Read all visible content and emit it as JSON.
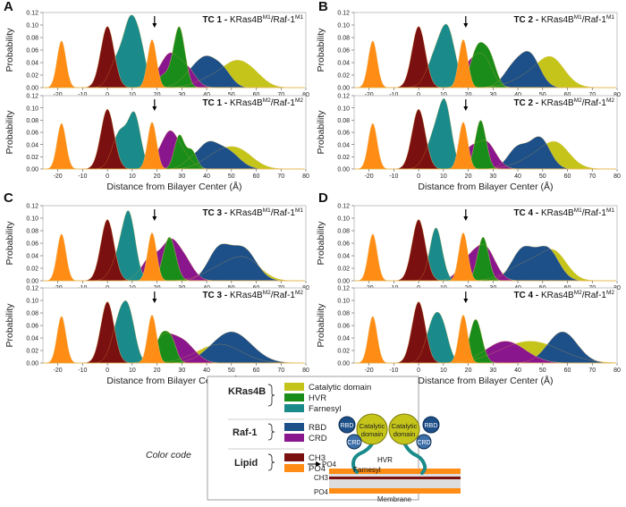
{
  "chart_data": {
    "type": "area",
    "x_label": "Distance from Bilayer Center (Å)",
    "y_label": "Probability",
    "xlim": [
      -26,
      80
    ],
    "ylim": [
      0,
      0.12
    ],
    "x_ticks": [
      -20,
      -10,
      0,
      10,
      20,
      30,
      40,
      50,
      60,
      70,
      80
    ],
    "y_ticks": [
      0.0,
      0.02,
      0.04,
      0.06,
      0.08,
      0.1,
      0.12
    ],
    "colors": {
      "catalytic": "#c4c41a",
      "hvr": "#1a8c1a",
      "farnesyl": "#1a8a8a",
      "rbd": "#1d4f88",
      "crd": "#8a168e",
      "ch3": "#7b1010",
      "po4": "#ff8c14"
    },
    "panels": [
      {
        "letter": "A",
        "charts": [
          {
            "label": "TC 1 - KRas4B",
            "sup1": "M1",
            "mid": "/Raf-1",
            "sup2": "M1",
            "arrow_x": 19,
            "series": {
              "catalytic": [
                [
                  42,
                  0.015,
                  6
                ],
                [
                  51,
                  0.03,
                  5
                ],
                [
                  58,
                  0.022,
                  5
                ]
              ],
              "hvr": [
                [
                  23,
                  0.02,
                  3
                ],
                [
                  29,
                  0.095,
                  2.3
                ]
              ],
              "farnesyl": [
                [
                  4,
                  0.045,
                  3
                ],
                [
                  9,
                  0.085,
                  2.5
                ],
                [
                  13,
                  0.065,
                  2.5
                ]
              ],
              "rbd": [
                [
                  33,
                  0.015,
                  4
                ],
                [
                  40,
                  0.045,
                  4.5
                ],
                [
                  47,
                  0.02,
                  3.5
                ]
              ],
              "crd": [
                [
                  19,
                  0.01,
                  3
                ],
                [
                  25,
                  0.05,
                  3.5
                ],
                [
                  32,
                  0.03,
                  3.5
                ]
              ],
              "ch3": [
                [
                  0,
                  0.098,
                  2.7
                ]
              ],
              "po4": [
                [
                  -18.5,
                  0.075,
                  1.8
                ],
                [
                  18,
                  0.077,
                  1.8
                ]
              ]
            }
          },
          {
            "label": "TC 1 - KRas4B",
            "sup1": "M2",
            "mid": "/Raf-1",
            "sup2": "M2",
            "arrow_x": 19,
            "series": {
              "catalytic": [
                [
                  44,
                  0.02,
                  6
                ],
                [
                  53,
                  0.028,
                  6
                ]
              ],
              "hvr": [
                [
                  29,
                  0.055,
                  2
                ],
                [
                  34,
                  0.03,
                  2
                ]
              ],
              "farnesyl": [
                [
                  5,
                  0.06,
                  3
                ],
                [
                  11,
                  0.085,
                  2.5
                ]
              ],
              "rbd": [
                [
                  33,
                  0.01,
                  3
                ],
                [
                  40,
                  0.035,
                  4
                ],
                [
                  48,
                  0.03,
                  5
                ]
              ],
              "crd": [
                [
                  20,
                  0.015,
                  3
                ],
                [
                  25,
                  0.05,
                  3
                ],
                [
                  30,
                  0.025,
                  3.5
                ]
              ],
              "ch3": [
                [
                  0,
                  0.098,
                  2.7
                ]
              ],
              "po4": [
                [
                  -18.5,
                  0.075,
                  1.8
                ],
                [
                  18,
                  0.077,
                  1.8
                ]
              ]
            }
          }
        ]
      },
      {
        "letter": "B",
        "charts": [
          {
            "label": "TC 2 - KRas4B",
            "sup1": "M1",
            "mid": "/Raf-1",
            "sup2": "M1",
            "arrow_x": 19,
            "series": {
              "catalytic": [
                [
                  48,
                  0.025,
                  8
                ],
                [
                  54,
                  0.03,
                  5
                ]
              ],
              "hvr": [
                [
                  24,
                  0.065,
                  3
                ],
                [
                  29,
                  0.04,
                  2.5
                ]
              ],
              "farnesyl": [
                [
                  7,
                  0.05,
                  3.5
                ],
                [
                  12,
                  0.08,
                  3
                ]
              ],
              "rbd": [
                [
                  38,
                  0.03,
                  4
                ],
                [
                  45,
                  0.05,
                  4
                ]
              ],
              "crd": [
                [
                  20,
                  0.03,
                  3
                ],
                [
                  26,
                  0.05,
                  3.5
                ]
              ],
              "ch3": [
                [
                  0,
                  0.098,
                  2.7
                ]
              ],
              "po4": [
                [
                  -18.5,
                  0.075,
                  1.8
                ],
                [
                  18,
                  0.077,
                  1.8
                ]
              ]
            }
          },
          {
            "label": "TC 2 - KRas4B",
            "sup1": "M2",
            "mid": "/Raf-1",
            "sup2": "M2",
            "arrow_x": 19,
            "series": {
              "catalytic": [
                [
                  50,
                  0.025,
                  8
                ],
                [
                  56,
                  0.025,
                  5
                ]
              ],
              "hvr": [
                [
                  25,
                  0.08,
                  2.2
                ]
              ],
              "farnesyl": [
                [
                  7,
                  0.06,
                  3.5
                ],
                [
                  11,
                  0.08,
                  2.5
                ]
              ],
              "rbd": [
                [
                  40,
                  0.035,
                  4
                ],
                [
                  49,
                  0.05,
                  4
                ]
              ],
              "crd": [
                [
                  20,
                  0.025,
                  3
                ],
                [
                  27,
                  0.045,
                  4
                ]
              ],
              "ch3": [
                [
                  0,
                  0.098,
                  2.7
                ]
              ],
              "po4": [
                [
                  -18.5,
                  0.075,
                  1.8
                ],
                [
                  18,
                  0.077,
                  1.8
                ]
              ]
            }
          }
        ]
      },
      {
        "letter": "C",
        "charts": [
          {
            "label": "TC 3 - KRas4B",
            "sup1": "M1",
            "mid": "/Raf-1",
            "sup2": "M1",
            "arrow_x": 19,
            "series": {
              "catalytic": [
                [
                  46,
                  0.02,
                  7
                ],
                [
                  56,
                  0.03,
                  6
                ]
              ],
              "hvr": [
                [
                  25,
                  0.07,
                  2.5
                ]
              ],
              "farnesyl": [
                [
                  6,
                  0.05,
                  3.5
                ],
                [
                  9,
                  0.075,
                  2.5
                ]
              ],
              "rbd": [
                [
                  45,
                  0.05,
                  4.5
                ],
                [
                  55,
                  0.05,
                  5
                ]
              ],
              "crd": [
                [
                  18,
                  0.04,
                  4
                ],
                [
                  25,
                  0.04,
                  3
                ],
                [
                  30,
                  0.04,
                  4
                ]
              ],
              "ch3": [
                [
                  0,
                  0.098,
                  2.7
                ]
              ],
              "po4": [
                [
                  -18.5,
                  0.075,
                  1.8
                ],
                [
                  18,
                  0.077,
                  1.8
                ]
              ]
            }
          },
          {
            "label": "TC 3 - KRas4B",
            "sup1": "M2",
            "mid": "/Raf-1",
            "sup2": "M2",
            "arrow_x": 19,
            "series": {
              "catalytic": [
                [
                  45,
                  0.03,
                  9
                ]
              ],
              "hvr": [
                [
                  22,
                  0.045,
                  2.5
                ],
                [
                  26,
                  0.03,
                  2
                ]
              ],
              "farnesyl": [
                [
                  5,
                  0.07,
                  3
                ],
                [
                  9,
                  0.06,
                  2.5
                ]
              ],
              "rbd": [
                [
                  50,
                  0.05,
                  8
                ]
              ],
              "crd": [
                [
                  22,
                  0.035,
                  4
                ],
                [
                  30,
                  0.035,
                  5
                ]
              ],
              "ch3": [
                [
                  0,
                  0.098,
                  2.7
                ]
              ],
              "po4": [
                [
                  -18.5,
                  0.075,
                  1.8
                ],
                [
                  18,
                  0.077,
                  1.8
                ]
              ]
            }
          }
        ]
      },
      {
        "letter": "D",
        "charts": [
          {
            "label": "TC 4 - KRas4B",
            "sup1": "M1",
            "mid": "/Raf-1",
            "sup2": "M1",
            "arrow_x": 19,
            "series": {
              "catalytic": [
                [
                  45,
                  0.03,
                  8
                ],
                [
                  55,
                  0.035,
                  5
                ]
              ],
              "hvr": [
                [
                  26,
                  0.07,
                  2.2
                ]
              ],
              "farnesyl": [
                [
                  7,
                  0.085,
                  2.5
                ]
              ],
              "rbd": [
                [
                  42,
                  0.05,
                  4.5
                ],
                [
                  52,
                  0.05,
                  4.5
                ]
              ],
              "crd": [
                [
                  20,
                  0.03,
                  4
                ],
                [
                  27,
                  0.05,
                  4
                ]
              ],
              "ch3": [
                [
                  0,
                  0.098,
                  2.7
                ]
              ],
              "po4": [
                [
                  -18.5,
                  0.075,
                  1.8
                ],
                [
                  18,
                  0.077,
                  1.8
                ]
              ]
            }
          },
          {
            "label": "TC 4 - KRas4B",
            "sup1": "M2",
            "mid": "/Raf-1",
            "sup2": "M2",
            "arrow_x": 19,
            "series": {
              "catalytic": [
                [
                  45,
                  0.035,
                  12
                ]
              ],
              "hvr": [
                [
                  23,
                  0.07,
                  2.5
                ]
              ],
              "farnesyl": [
                [
                  6,
                  0.065,
                  3
                ],
                [
                  10,
                  0.04,
                  2.5
                ]
              ],
              "rbd": [
                [
                  58,
                  0.05,
                  6
                ]
              ],
              "crd": [
                [
                  35,
                  0.035,
                  8
                ]
              ],
              "ch3": [
                [
                  0,
                  0.098,
                  2.7
                ]
              ],
              "po4": [
                [
                  -18.5,
                  0.075,
                  1.8
                ],
                [
                  18,
                  0.077,
                  1.8
                ]
              ]
            }
          }
        ]
      }
    ]
  },
  "legend": {
    "color_code_label": "Color code",
    "groups": [
      {
        "name": "KRas4B",
        "items": [
          {
            "key": "catalytic",
            "label": "Catalytic domain"
          },
          {
            "key": "hvr",
            "label": "HVR"
          },
          {
            "key": "farnesyl",
            "label": "Farnesyl"
          }
        ]
      },
      {
        "name": "Raf-1",
        "items": [
          {
            "key": "rbd",
            "label": "RBD"
          },
          {
            "key": "crd",
            "label": "CRD"
          }
        ]
      },
      {
        "name": "Lipid",
        "items": [
          {
            "key": "ch3",
            "label": "CH3"
          },
          {
            "key": "po4",
            "label": "PO4"
          }
        ]
      }
    ]
  },
  "schematic": {
    "catalytic_label": "Catalytic domain",
    "rbd_label": "RBD",
    "crd_label": "CRD",
    "hvr_label": "HVR",
    "farnesyl_label": "Farnesyl",
    "po4_label": "PO4",
    "ch3_label": "CH3",
    "po4_bottom_label": "PO4",
    "membrane_label": "Membrane"
  }
}
